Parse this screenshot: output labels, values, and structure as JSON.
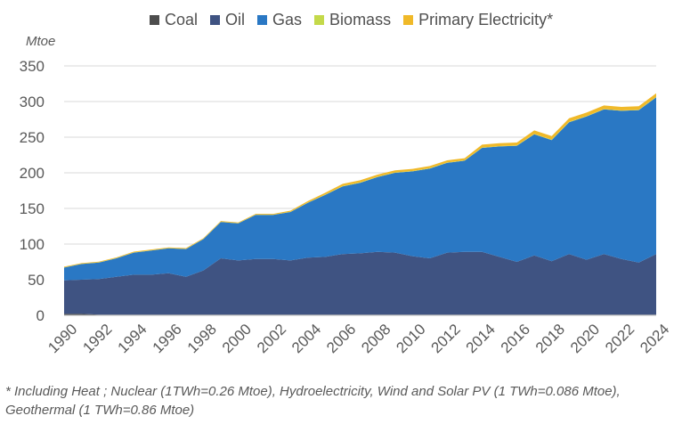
{
  "chart_data": {
    "type": "area",
    "stacked": true,
    "ylabel": "Mtoe",
    "ylim": [
      0,
      350
    ],
    "yticks": [
      0,
      50,
      100,
      150,
      200,
      250,
      300,
      350
    ],
    "grid": true,
    "legend_position": "top",
    "x": [
      1990,
      1991,
      1992,
      1993,
      1994,
      1995,
      1996,
      1997,
      1998,
      1999,
      2000,
      2001,
      2002,
      2003,
      2004,
      2005,
      2006,
      2007,
      2008,
      2009,
      2010,
      2011,
      2012,
      2013,
      2014,
      2015,
      2016,
      2017,
      2018,
      2019,
      2020,
      2021,
      2022,
      2023,
      2024
    ],
    "xticks": [
      "1990",
      "1992",
      "1994",
      "1996",
      "1998",
      "2000",
      "2002",
      "2004",
      "2006",
      "2008",
      "2010",
      "2012",
      "2014",
      "2016",
      "2018",
      "2020",
      "2022",
      "2024"
    ],
    "series": [
      {
        "name": "Coal",
        "color": "#4d4d4d",
        "values": [
          2,
          2,
          1,
          1,
          1,
          1,
          1,
          1,
          1,
          1,
          1,
          1,
          1,
          1,
          1,
          1,
          1,
          1,
          1,
          1,
          1,
          1,
          1,
          1,
          1,
          1,
          1,
          1,
          1,
          1,
          1,
          1,
          1,
          1,
          1
        ]
      },
      {
        "name": "Oil",
        "color": "#3f5382",
        "values": [
          47,
          48,
          50,
          53,
          56,
          56,
          58,
          53,
          62,
          79,
          76,
          78,
          78,
          76,
          80,
          81,
          85,
          86,
          88,
          87,
          82,
          79,
          87,
          88,
          88,
          81,
          74,
          83,
          75,
          85,
          77,
          85,
          78,
          73,
          85
        ]
      },
      {
        "name": "Gas",
        "color": "#2a78c4",
        "values": [
          18,
          22,
          23,
          26,
          31,
          34,
          35,
          39,
          44,
          51,
          52,
          62,
          62,
          68,
          77,
          87,
          95,
          99,
          105,
          112,
          119,
          126,
          126,
          128,
          146,
          155,
          163,
          170,
          170,
          185,
          201,
          203,
          208,
          214,
          220
        ]
      },
      {
        "name": "Biomass",
        "color": "#c4d94a",
        "values": [
          0.3,
          0.3,
          0.3,
          0.3,
          0.3,
          0.3,
          0.3,
          0.3,
          0.3,
          0.3,
          0.3,
          0.3,
          0.3,
          0.3,
          0.3,
          0.5,
          0.5,
          0.5,
          0.5,
          0.5,
          0.5,
          0.5,
          0.5,
          0.5,
          0.5,
          0.5,
          0.5,
          0.5,
          0.5,
          0.5,
          0.5,
          0.5,
          0.5,
          0.5,
          0.5
        ]
      },
      {
        "name": "Primary Electricity*",
        "color": "#f0b929",
        "values": [
          1,
          1,
          1,
          1,
          1,
          1,
          1,
          1,
          1,
          1,
          1,
          1,
          1,
          1.5,
          2,
          2.5,
          3,
          3,
          3,
          3,
          3,
          3,
          3,
          3,
          4,
          4,
          4,
          5,
          5,
          5,
          5,
          5,
          5,
          5,
          5
        ]
      }
    ]
  },
  "footnote": "* Including Heat ; Nuclear (1TWh=0.26 Mtoe), Hydroelectricity, Wind and Solar PV (1 TWh=0.086 Mtoe), Geothermal (1 TWh=0.86 Mtoe)"
}
